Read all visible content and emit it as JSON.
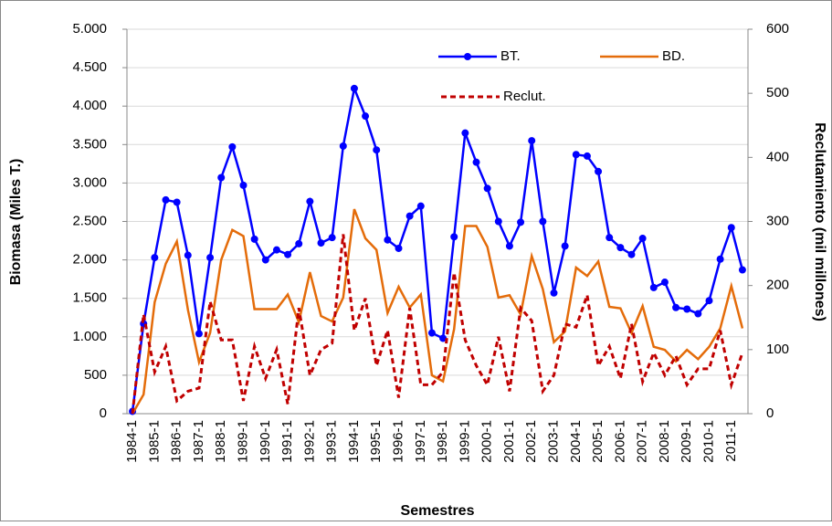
{
  "chart_data": {
    "type": "line",
    "x_label": "Semestres",
    "y_label": "Biomasa (Miles  T.)",
    "y2_label": "Reclutamiento  (mil millones)",
    "categories": [
      "1984-1",
      null,
      "1985-1",
      null,
      "1986-1",
      null,
      "1987-1",
      null,
      "1988-1",
      null,
      "1989-1",
      null,
      "1990-1",
      null,
      "1991-1",
      null,
      "1992-1",
      null,
      "1993-1",
      null,
      "1994-1",
      null,
      "1995-1",
      null,
      "1996-1",
      null,
      "1997-1",
      null,
      "1998-1",
      null,
      "1999-1",
      null,
      "2000-1",
      null,
      "2001-1",
      null,
      "2002-1",
      null,
      "2003-1",
      null,
      "2004-1",
      null,
      "2005-1",
      null,
      "2006-1",
      null,
      "2007-1",
      null,
      "2008-1",
      null,
      "2009-1",
      null,
      "2010-1",
      null,
      "2011-1",
      null
    ],
    "series": [
      {
        "name": "BT.",
        "color": "#0000ff",
        "marker": true,
        "values": [
          30,
          1170,
          2030,
          2780,
          2750,
          2060,
          1040,
          2030,
          3070,
          3470,
          2970,
          2270,
          2000,
          2130,
          2070,
          2210,
          2760,
          2220,
          2290,
          3480,
          4230,
          3870,
          3430,
          2260,
          2150,
          2570,
          2700,
          1050,
          980,
          2300,
          3650,
          3270,
          2930,
          2500,
          2180,
          2490,
          3550,
          2500,
          1570,
          2180,
          3370,
          3350,
          3150,
          2290,
          2160,
          2070,
          2280,
          1640,
          1710,
          1380,
          1360,
          1300,
          1470,
          2010,
          2420,
          1870
        ]
      },
      {
        "name": "BD.",
        "color": "#e46c0a",
        "values": [
          0,
          250,
          1450,
          1950,
          2240,
          1350,
          670,
          1050,
          2000,
          2390,
          2310,
          1360,
          1360,
          1360,
          1550,
          1190,
          1840,
          1270,
          1200,
          1510,
          2660,
          2280,
          2130,
          1310,
          1650,
          1380,
          1550,
          500,
          420,
          1100,
          2440,
          2440,
          2170,
          1510,
          1540,
          1290,
          2050,
          1620,
          930,
          1070,
          1900,
          1790,
          1980,
          1390,
          1370,
          1050,
          1400,
          870,
          830,
          680,
          830,
          710,
          870,
          1110,
          1660,
          1110
        ]
      },
      {
        "name": "Reclut.",
        "color": "#c00000",
        "dashed": true,
        "axis": "y2",
        "values": [
          0,
          155,
          65,
          105,
          20,
          35,
          40,
          175,
          115,
          115,
          20,
          105,
          55,
          100,
          15,
          165,
          60,
          100,
          110,
          280,
          130,
          180,
          75,
          130,
          25,
          165,
          45,
          45,
          65,
          220,
          115,
          75,
          45,
          120,
          35,
          165,
          145,
          35,
          60,
          140,
          135,
          185,
          75,
          105,
          55,
          140,
          50,
          95,
          60,
          90,
          45,
          70,
          70,
          130,
          45,
          95
        ]
      }
    ],
    "ylim": [
      0,
      5000
    ],
    "yticks": [
      0,
      500,
      {
        "value": 1000,
        "label": "1.000"
      },
      {
        "value": 1500,
        "label": "1.500"
      },
      {
        "value": 2000,
        "label": "2.000"
      },
      {
        "value": 2500,
        "label": "2.500"
      },
      {
        "value": 3000,
        "label": "3.000"
      },
      {
        "value": 3500,
        "label": "3.500"
      },
      {
        "value": 4000,
        "label": "4.000"
      },
      {
        "value": 4500,
        "label": "4.500"
      },
      {
        "value": 5000,
        "label": "5.000"
      }
    ],
    "y2lim": [
      0,
      600
    ],
    "y2ticks": [
      0,
      100,
      200,
      300,
      400,
      500,
      600
    ],
    "grid": true
  }
}
